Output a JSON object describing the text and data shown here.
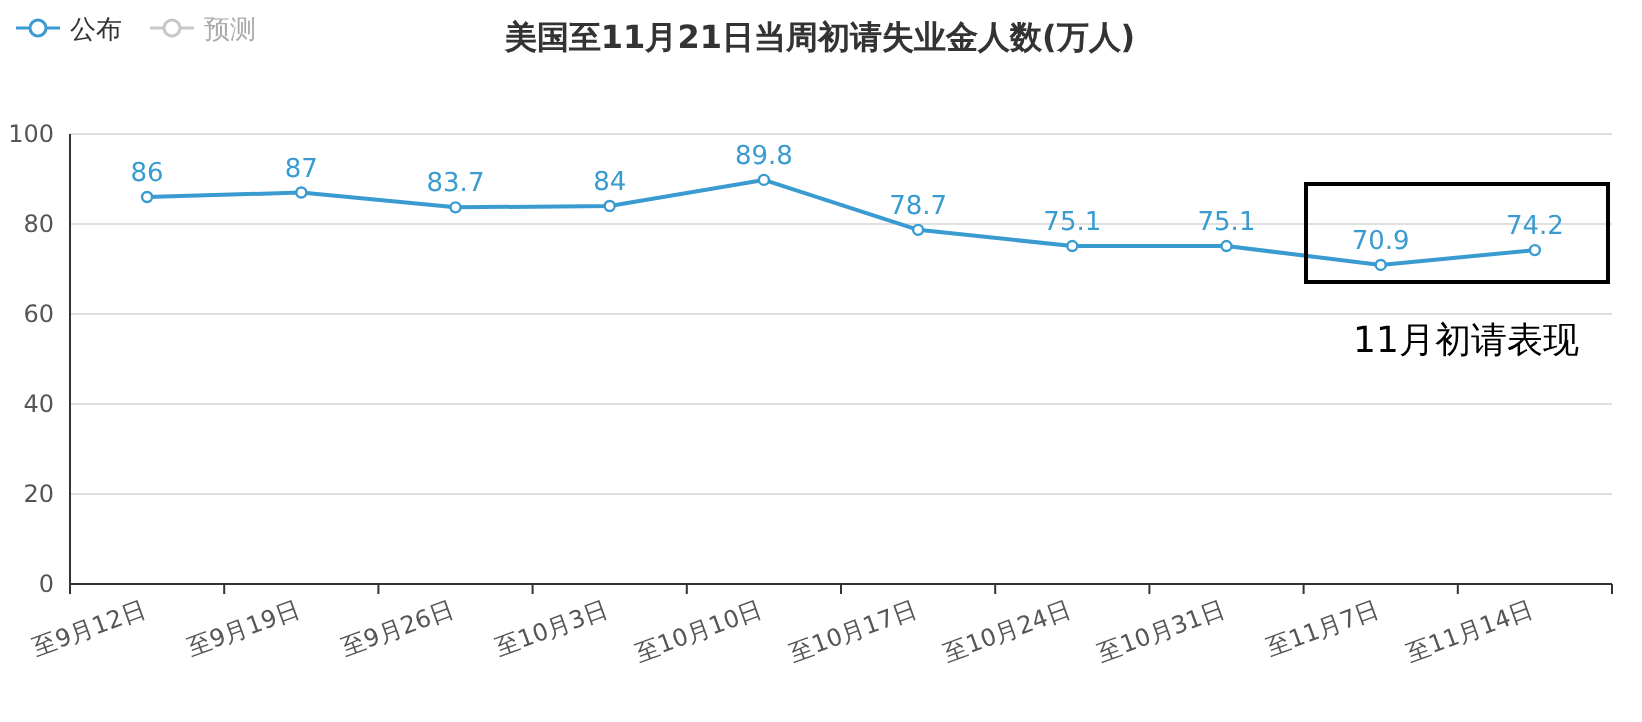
{
  "chart_data": {
    "type": "line",
    "title": "美国至11月21日当周初请失业金人数(万人)",
    "categories": [
      "至9月12日",
      "至9月19日",
      "至9月26日",
      "至10月3日",
      "至10月10日",
      "至10月17日",
      "至10月24日",
      "至10月31日",
      "至11月7日",
      "至11月14日"
    ],
    "series": [
      {
        "name": "公布",
        "color": "#3a9bd1",
        "values": [
          86,
          87,
          83.7,
          84,
          89.8,
          78.7,
          75.1,
          75.1,
          70.9,
          74.2
        ]
      },
      {
        "name": "预测",
        "color": "#c8c8c8",
        "values": [
          null,
          null,
          null,
          null,
          null,
          null,
          null,
          null,
          null,
          null
        ]
      }
    ],
    "ylim": [
      0,
      100
    ],
    "yticks": [
      0,
      20,
      40,
      60,
      80,
      100
    ],
    "grid": "y",
    "legend": "top left",
    "marker": "circle",
    "data_labels": true,
    "annotations": [
      "11月初请表现"
    ]
  }
}
